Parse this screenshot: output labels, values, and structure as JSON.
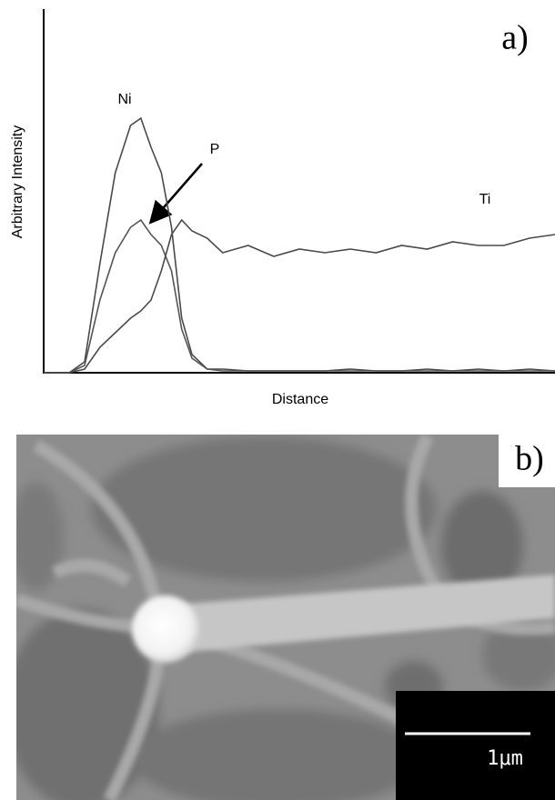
{
  "chart_data": {
    "type": "line",
    "panel_label": "a)",
    "xlabel": "Distance",
    "ylabel": "Arbitrary Intensity",
    "x": [
      0,
      5,
      8,
      11,
      14,
      17,
      19,
      21,
      23,
      25,
      27,
      29,
      32,
      35,
      40,
      45,
      50,
      55,
      60,
      65,
      70,
      75,
      80,
      85,
      90,
      95,
      100
    ],
    "xlim": [
      0,
      100
    ],
    "ylim": [
      0,
      100
    ],
    "series": [
      {
        "name": "Ni",
        "color": "#4a4a4a",
        "values": [
          0,
          0,
          3,
          30,
          55,
          68,
          70,
          62,
          55,
          40,
          15,
          5,
          1,
          1,
          0.5,
          0.5,
          0.5,
          0.5,
          1,
          0.5,
          0.5,
          1,
          0.5,
          1,
          0.5,
          1,
          0.5
        ]
      },
      {
        "name": "P",
        "color": "#555555",
        "values": [
          0,
          0,
          2,
          20,
          33,
          40,
          42,
          38,
          35,
          28,
          12,
          4,
          1,
          0.5,
          0.5,
          0.5,
          0.5,
          0.5,
          0.5,
          0.5,
          0.5,
          0.5,
          0.5,
          0.5,
          0.5,
          0.5,
          0.5
        ]
      },
      {
        "name": "Ti",
        "color": "#4a4a4a",
        "values": [
          0,
          0,
          1,
          7,
          11,
          15,
          17,
          20,
          28,
          38,
          42,
          39,
          37,
          33,
          35,
          32,
          34,
          33,
          34,
          33,
          35,
          34,
          36,
          35,
          35,
          37,
          38
        ]
      }
    ]
  },
  "image_panel": {
    "label": "b)",
    "scale_bar": "1μm"
  }
}
